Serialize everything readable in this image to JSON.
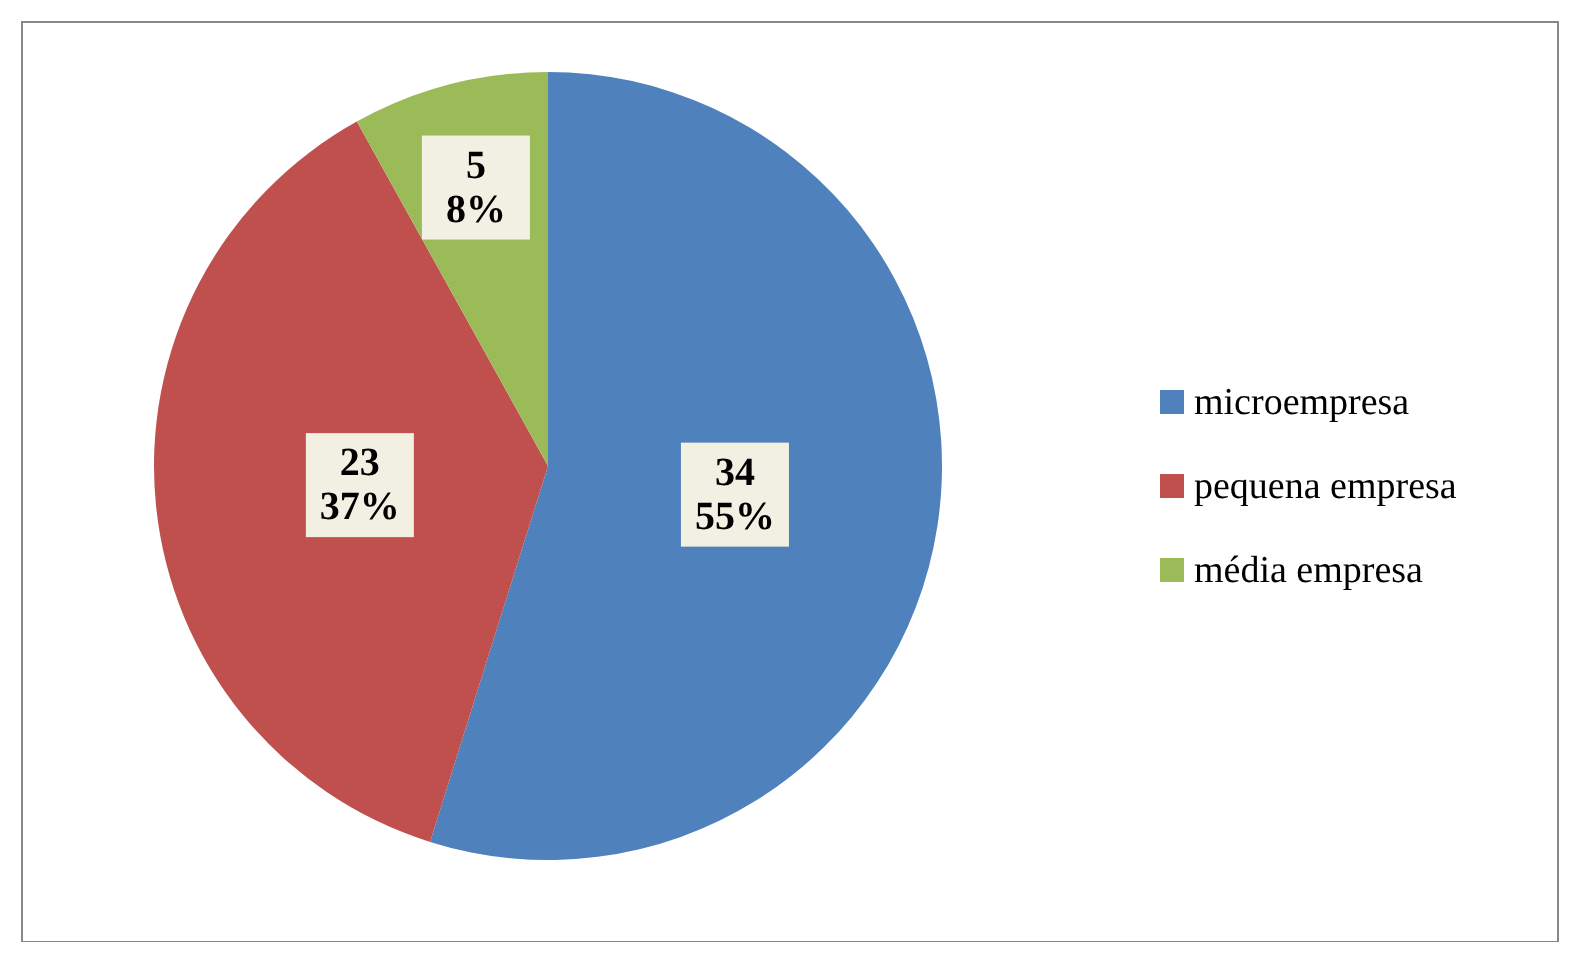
{
  "chart_data": {
    "type": "pie",
    "categories": [
      "microempresa",
      "pequena empresa",
      "média empresa"
    ],
    "values": [
      34,
      23,
      5
    ],
    "colors": [
      "#4f81bd",
      "#c0504d",
      "#9bbb59"
    ],
    "value_labels": [
      "34\n55%",
      "23\n37%",
      "5\n8%"
    ],
    "legend": "right"
  }
}
